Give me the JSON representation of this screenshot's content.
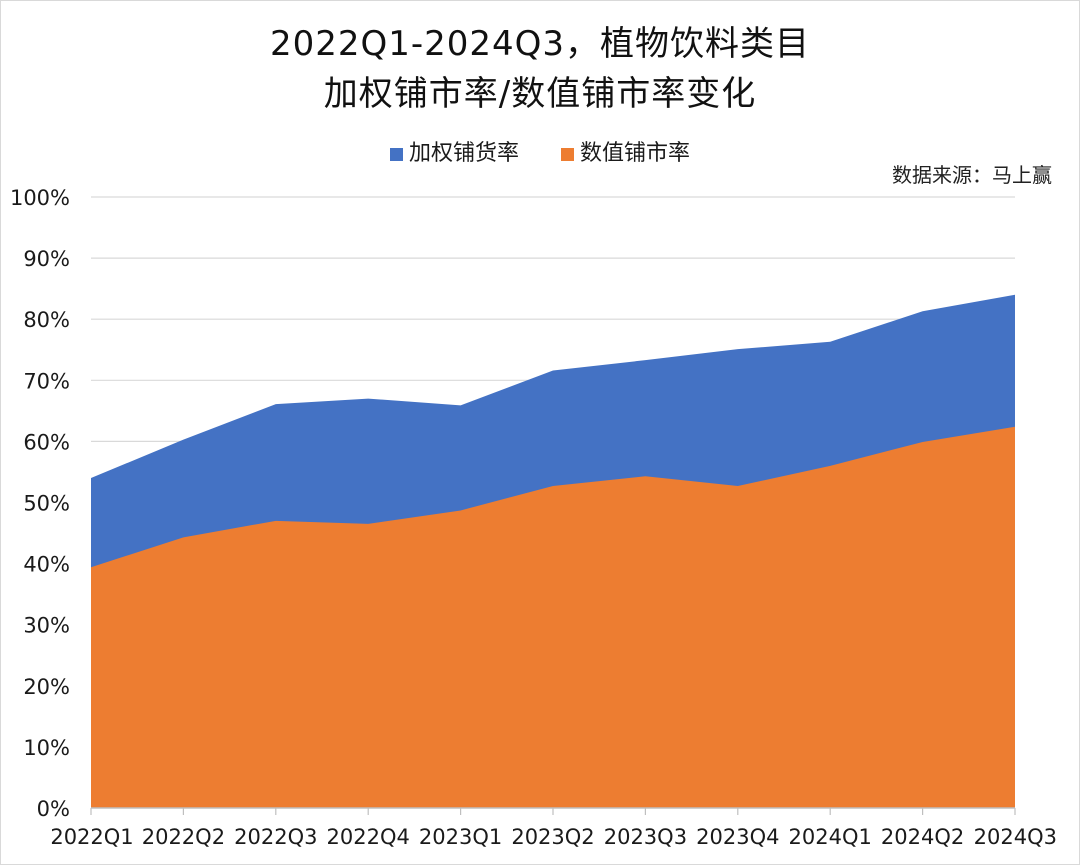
{
  "title_line1": "2022Q1-2024Q3，植物饮料类目",
  "title_line2": "加权铺市率/数值铺市率变化",
  "source_note": "数据来源：马上赢",
  "chart_data": {
    "type": "area",
    "categories": [
      "2022Q1",
      "2022Q2",
      "2022Q3",
      "2022Q4",
      "2023Q1",
      "2023Q2",
      "2023Q3",
      "2023Q4",
      "2024Q1",
      "2024Q2",
      "2024Q3"
    ],
    "series": [
      {
        "name": "加权铺货率",
        "color": "#4472C4",
        "values": [
          54.0,
          60.3,
          66.1,
          67.0,
          65.9,
          71.6,
          73.3,
          75.1,
          76.3,
          81.3,
          84.0
        ]
      },
      {
        "name": "数值铺市率",
        "color": "#ED7D31",
        "values": [
          39.4,
          44.3,
          47.0,
          46.5,
          48.7,
          52.7,
          54.3,
          52.7,
          56.0,
          59.9,
          62.4
        ]
      }
    ],
    "ylim": [
      0,
      100
    ],
    "yticks": [
      "0%",
      "10%",
      "20%",
      "30%",
      "40%",
      "50%",
      "60%",
      "70%",
      "80%",
      "90%",
      "100%"
    ],
    "grid": true,
    "legend_position": "top-center"
  }
}
